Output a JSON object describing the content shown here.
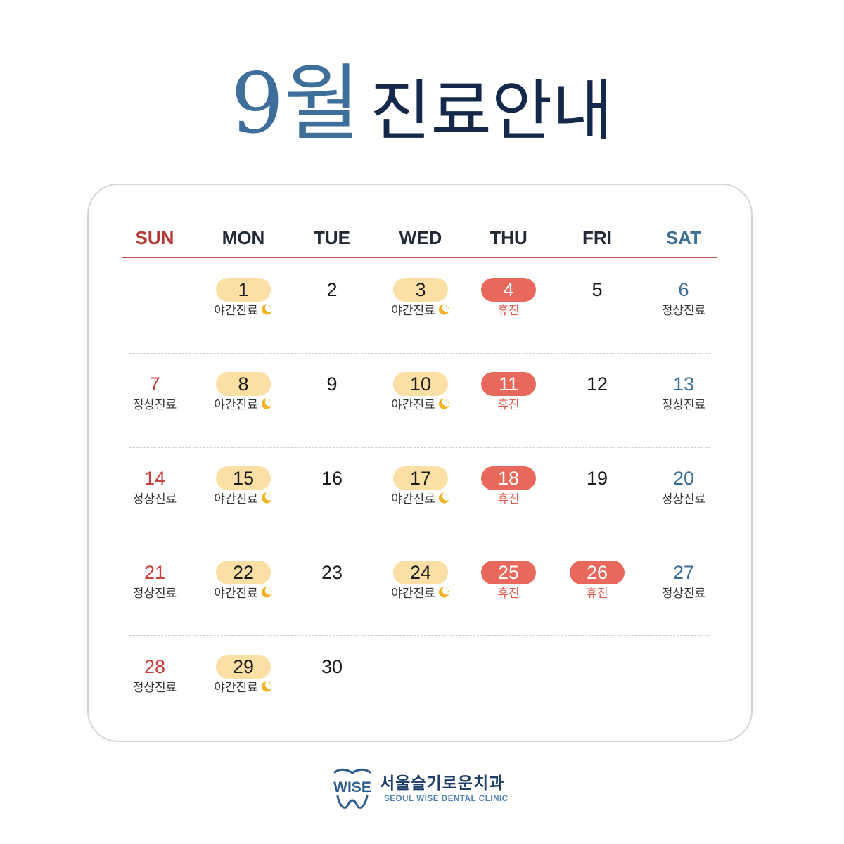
{
  "title": {
    "month": "9월",
    "rest": "진료안내"
  },
  "weekdays": [
    "SUN",
    "MON",
    "TUE",
    "WED",
    "THU",
    "FRI",
    "SAT"
  ],
  "labels": {
    "night": "야간진료",
    "closed": "휴진",
    "regular": "정상진료"
  },
  "days": [
    {
      "date": "1",
      "status": "night"
    },
    {
      "date": "2",
      "status": "none"
    },
    {
      "date": "3",
      "status": "night"
    },
    {
      "date": "4",
      "status": "closed"
    },
    {
      "date": "5",
      "status": "none"
    },
    {
      "date": "6",
      "status": "regular"
    },
    {
      "date": "7",
      "status": "regular"
    },
    {
      "date": "8",
      "status": "night"
    },
    {
      "date": "9",
      "status": "none"
    },
    {
      "date": "10",
      "status": "night"
    },
    {
      "date": "11",
      "status": "closed"
    },
    {
      "date": "12",
      "status": "none"
    },
    {
      "date": "13",
      "status": "regular"
    },
    {
      "date": "14",
      "status": "regular"
    },
    {
      "date": "15",
      "status": "night"
    },
    {
      "date": "16",
      "status": "none"
    },
    {
      "date": "17",
      "status": "night"
    },
    {
      "date": "18",
      "status": "closed"
    },
    {
      "date": "19",
      "status": "none"
    },
    {
      "date": "20",
      "status": "regular"
    },
    {
      "date": "21",
      "status": "regular"
    },
    {
      "date": "22",
      "status": "night"
    },
    {
      "date": "23",
      "status": "none"
    },
    {
      "date": "24",
      "status": "night"
    },
    {
      "date": "25",
      "status": "closed"
    },
    {
      "date": "26",
      "status": "closed"
    },
    {
      "date": "27",
      "status": "regular"
    },
    {
      "date": "28",
      "status": "regular"
    },
    {
      "date": "29",
      "status": "night"
    },
    {
      "date": "30",
      "status": "none"
    }
  ],
  "icons": {
    "night_marker": "crescent-moon-icon",
    "logo_mark": "tooth-icon"
  },
  "colors": {
    "night_badge": "#fcdfa5",
    "closed_badge": "#e8685b",
    "sunday": "#c8403b",
    "saturday": "#3d6e97",
    "title_month": "#3e6f9a",
    "title_text": "#14284a"
  },
  "logo": {
    "mark_text": "WISE",
    "name_ko": "서울슬기로운치과",
    "name_en": "SEOUL WISE DENTAL CLINIC"
  }
}
